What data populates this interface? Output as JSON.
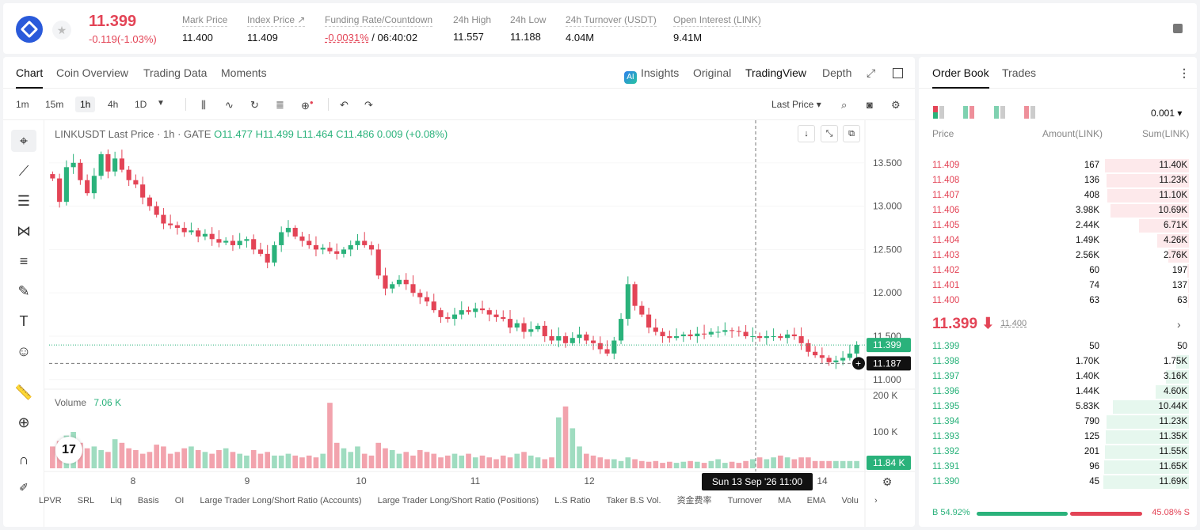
{
  "header": {
    "last_price": "11.399",
    "change": "-0.119(-1.03%)",
    "stats": [
      {
        "label": "Mark Price",
        "value": "11.400"
      },
      {
        "label": "Index Price ↗",
        "value": "11.409"
      },
      {
        "label": "Funding Rate/Countdown",
        "value_neg": "-0.0031%",
        "value": " / 06:40:02"
      },
      {
        "label": "24h High",
        "value": "11.557"
      },
      {
        "label": "24h Low",
        "value": "11.188"
      },
      {
        "label": "24h Turnover (USDT)",
        "value": "4.04M"
      },
      {
        "label": "Open Interest (LINK)",
        "value": "9.41M"
      }
    ]
  },
  "chart_tabs": [
    "Chart",
    "Coin Overview",
    "Trading Data",
    "Moments"
  ],
  "view_tabs": {
    "insights": "Insights",
    "original": "Original",
    "tradingview": "TradingView",
    "depth": "Depth"
  },
  "ai_badge": "AI",
  "timeframes": [
    "1m",
    "15m",
    "1h",
    "4h",
    "1D"
  ],
  "price_type": "Last Price ▾",
  "legend": {
    "symbol": "LINKUSDT Last Price · 1h · GATE",
    "o": "O11.477",
    "h": "H11.499",
    "l": "L11.464",
    "c": "C11.486",
    "chg": "0.009 (+0.08%)"
  },
  "volume_legend": {
    "label": "Volume",
    "value": "7.06 K"
  },
  "tv_logo": "17",
  "indicators": [
    "LPVR",
    "SRL",
    "Liq",
    "Basis",
    "OI",
    "Large Trader Long/Short Ratio (Accounts)",
    "Large Trader Long/Short Ratio (Positions)",
    "L.S Ratio",
    "Taker B.S Vol.",
    "资金费率",
    "Turnover",
    "MA",
    "EMA",
    "Volu"
  ],
  "chart_data": {
    "type": "candlestick",
    "title": "LINKUSDT Last Price · 1h · GATE",
    "y_ticks": [
      "13.500",
      "13.000",
      "12.500",
      "12.000",
      "11.500",
      "11.000"
    ],
    "ylim": [
      10.98,
      13.9
    ],
    "x_ticks": [
      "8",
      "9",
      "10",
      "11",
      "12",
      "14"
    ],
    "volume_ticks": [
      "200 K",
      "100 K"
    ],
    "last_price_label": "11.399",
    "crosshair_price_label": "11.187",
    "volume_label": "11.84 K",
    "crosshair_time": "Sun 13 Sep '26   11:00",
    "price_path": [
      13.32,
      13.05,
      13.45,
      13.5,
      13.3,
      13.15,
      13.35,
      13.6,
      13.4,
      13.55,
      13.42,
      13.3,
      13.25,
      13.1,
      13.0,
      12.9,
      12.8,
      12.78,
      12.75,
      12.7,
      12.72,
      12.65,
      12.68,
      12.62,
      12.58,
      12.6,
      12.55,
      12.6,
      12.62,
      12.5,
      12.45,
      12.35,
      12.55,
      12.7,
      12.75,
      12.65,
      12.6,
      12.55,
      12.5,
      12.52,
      12.48,
      12.45,
      12.5,
      12.55,
      12.6,
      12.55,
      12.5,
      12.2,
      12.05,
      12.1,
      12.15,
      12.1,
      12.0,
      11.95,
      11.9,
      11.8,
      11.72,
      11.7,
      11.75,
      11.8,
      11.78,
      11.82,
      11.8,
      11.75,
      11.72,
      11.7,
      11.6,
      11.65,
      11.55,
      11.58,
      11.62,
      11.5,
      11.45,
      11.5,
      11.42,
      11.48,
      11.52,
      11.45,
      11.42,
      11.35,
      11.3,
      11.45,
      11.7,
      12.1,
      11.85,
      11.75,
      11.6,
      11.55,
      11.5,
      11.48,
      11.5,
      11.52,
      11.5,
      11.53,
      11.52,
      11.55,
      11.55,
      11.57,
      11.56,
      11.55,
      11.5,
      11.5,
      11.48,
      11.5,
      11.5,
      11.48,
      11.52,
      11.5,
      11.42,
      11.32,
      11.28,
      11.25,
      11.2,
      11.22,
      11.25,
      11.3,
      11.4
    ],
    "volumes": [
      60,
      75,
      90,
      100,
      70,
      55,
      60,
      50,
      45,
      80,
      70,
      55,
      50,
      40,
      45,
      65,
      60,
      40,
      45,
      55,
      60,
      50,
      45,
      40,
      50,
      55,
      45,
      40,
      35,
      50,
      40,
      45,
      35,
      35,
      40,
      35,
      30,
      35,
      30,
      40,
      180,
      70,
      55,
      45,
      60,
      40,
      35,
      70,
      55,
      50,
      40,
      45,
      35,
      50,
      45,
      40,
      30,
      35,
      40,
      35,
      40,
      30,
      35,
      30,
      25,
      35,
      30,
      40,
      45,
      35,
      30,
      25,
      30,
      140,
      170,
      110,
      60,
      40,
      35,
      30,
      25,
      25,
      20,
      30,
      25,
      20,
      18,
      20,
      15,
      18,
      15,
      18,
      20,
      18,
      15,
      20,
      25,
      15,
      18,
      15,
      20,
      25,
      30,
      25,
      30,
      35,
      30,
      25,
      30,
      30
    ]
  },
  "orderbook": {
    "tabs": [
      "Order Book",
      "Trades"
    ],
    "precision": "0.001 ▾",
    "headers": {
      "price": "Price",
      "amount": "Amount(LINK)",
      "sum": "Sum(LINK)"
    },
    "asks": [
      {
        "price": "11.409",
        "amount": "167",
        "sum": "11.40K",
        "depth": 0.98
      },
      {
        "price": "11.408",
        "amount": "136",
        "sum": "11.23K",
        "depth": 0.96
      },
      {
        "price": "11.407",
        "amount": "408",
        "sum": "11.10K",
        "depth": 0.95
      },
      {
        "price": "11.406",
        "amount": "3.98K",
        "sum": "10.69K",
        "depth": 0.92
      },
      {
        "price": "11.405",
        "amount": "2.44K",
        "sum": "6.71K",
        "depth": 0.58
      },
      {
        "price": "11.404",
        "amount": "1.49K",
        "sum": "4.26K",
        "depth": 0.37
      },
      {
        "price": "11.403",
        "amount": "2.56K",
        "sum": "2.76K",
        "depth": 0.24
      },
      {
        "price": "11.402",
        "amount": "60",
        "sum": "197",
        "depth": 0.017
      },
      {
        "price": "11.401",
        "amount": "74",
        "sum": "137",
        "depth": 0.012
      },
      {
        "price": "11.400",
        "amount": "63",
        "sum": "63",
        "depth": 0.005
      }
    ],
    "mid_price": "11.399 ⬇",
    "mid_mark": "11.400",
    "bids": [
      {
        "price": "11.399",
        "amount": "50",
        "sum": "50",
        "depth": 0.004
      },
      {
        "price": "11.398",
        "amount": "1.70K",
        "sum": "1.75K",
        "depth": 0.15
      },
      {
        "price": "11.397",
        "amount": "1.40K",
        "sum": "3.16K",
        "depth": 0.27
      },
      {
        "price": "11.396",
        "amount": "1.44K",
        "sum": "4.60K",
        "depth": 0.39
      },
      {
        "price": "11.395",
        "amount": "5.83K",
        "sum": "10.44K",
        "depth": 0.89
      },
      {
        "price": "11.394",
        "amount": "790",
        "sum": "11.23K",
        "depth": 0.96
      },
      {
        "price": "11.393",
        "amount": "125",
        "sum": "11.35K",
        "depth": 0.97
      },
      {
        "price": "11.392",
        "amount": "201",
        "sum": "11.55K",
        "depth": 0.98
      },
      {
        "price": "11.391",
        "amount": "96",
        "sum": "11.65K",
        "depth": 0.99
      },
      {
        "price": "11.390",
        "amount": "45",
        "sum": "11.69K",
        "depth": 1.0
      }
    ],
    "buy_ratio": "B 54.92%",
    "sell_ratio": "45.08% S",
    "buy_pct": 54.92
  },
  "colors": {
    "up": "#2ab27b",
    "down": "#e34456",
    "up_light": "#9fdcc0",
    "down_light": "#f2a3ad"
  }
}
